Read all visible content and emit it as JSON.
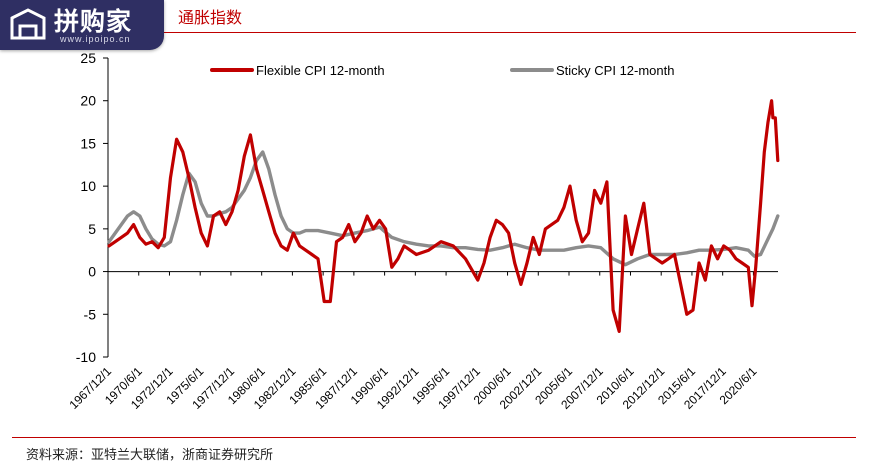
{
  "header": {
    "title": "通胀指数",
    "logo_text": "拼购家",
    "logo_url_text": "www.ipoipo.cn"
  },
  "footer": {
    "source": "资料来源：亚特兰大联储，浙商证券研究所"
  },
  "colors": {
    "flexible": "#c00000",
    "sticky": "#8c8c8c",
    "accent": "#c00000",
    "logo_bg": "#2f2f63"
  },
  "chart_data": {
    "type": "line",
    "title": "",
    "xlabel": "",
    "ylabel": "",
    "ylim": [
      -10,
      25
    ],
    "yticks": [
      "-10",
      "-5",
      "0",
      "5",
      "10",
      "15",
      "20",
      "25"
    ],
    "xlim": [
      "1967/12/1",
      "2022/6/1"
    ],
    "xtick_labels": [
      "1967/12/1",
      "1970/6/1",
      "1972/12/1",
      "1975/6/1",
      "1977/12/1",
      "1980/6/1",
      "1982/12/1",
      "1985/6/1",
      "1987/12/1",
      "1990/6/1",
      "1992/12/1",
      "1995/6/1",
      "1997/12/1",
      "2000/6/1",
      "2002/12/1",
      "2005/6/1",
      "2007/12/1",
      "2010/6/1",
      "2012/12/1",
      "2015/6/1",
      "2017/12/1",
      "2020/6/1"
    ],
    "legend_placement": "top",
    "grid": false,
    "series": [
      {
        "name": "Flexible CPI 12-month",
        "x": [
          1968.0,
          1968.5,
          1969.0,
          1969.5,
          1970.0,
          1970.5,
          1971.0,
          1971.5,
          1972.0,
          1972.5,
          1973.0,
          1973.5,
          1974.0,
          1974.5,
          1975.0,
          1975.5,
          1976.0,
          1976.5,
          1977.0,
          1977.5,
          1978.0,
          1978.5,
          1979.0,
          1979.5,
          1980.0,
          1980.5,
          1981.0,
          1981.5,
          1982.0,
          1982.5,
          1983.0,
          1983.5,
          1984.0,
          1984.5,
          1985.0,
          1985.5,
          1986.0,
          1986.5,
          1987.0,
          1987.5,
          1988.0,
          1988.5,
          1989.0,
          1989.5,
          1990.0,
          1990.5,
          1991.0,
          1991.5,
          1992.0,
          1992.5,
          1993.0,
          1994.0,
          1995.0,
          1996.0,
          1997.0,
          1998.0,
          1998.5,
          1999.0,
          1999.5,
          2000.0,
          2000.5,
          2001.0,
          2001.5,
          2002.0,
          2002.5,
          2003.0,
          2003.5,
          2004.0,
          2004.5,
          2005.0,
          2005.5,
          2006.0,
          2006.5,
          2007.0,
          2007.5,
          2008.0,
          2008.5,
          2009.0,
          2009.5,
          2010.0,
          2010.5,
          2011.0,
          2011.5,
          2012.0,
          2012.5,
          2013.0,
          2013.5,
          2014.0,
          2014.5,
          2015.0,
          2015.5,
          2016.0,
          2016.5,
          2017.0,
          2017.5,
          2018.0,
          2018.5,
          2019.0,
          2019.5,
          2020.0,
          2020.3,
          2020.6,
          2021.0,
          2021.3,
          2021.6,
          2021.9,
          2022.0,
          2022.2,
          2022.4
        ],
        "values": [
          3.0,
          3.5,
          4.0,
          4.5,
          5.5,
          4.0,
          3.2,
          3.5,
          2.8,
          4.0,
          11.0,
          15.5,
          14.0,
          11.0,
          7.5,
          4.5,
          3.0,
          6.5,
          7.0,
          5.5,
          7.0,
          9.5,
          13.5,
          16.0,
          12.0,
          9.5,
          7.0,
          4.5,
          3.0,
          2.5,
          4.5,
          3.0,
          2.5,
          2.0,
          1.5,
          -3.5,
          -3.5,
          3.5,
          4.0,
          5.5,
          3.5,
          4.5,
          6.5,
          5.0,
          6.0,
          5.0,
          0.5,
          1.5,
          3.0,
          2.5,
          2.0,
          2.5,
          3.5,
          3.0,
          1.5,
          -1.0,
          1.0,
          4.0,
          6.0,
          5.5,
          4.5,
          1.0,
          -1.5,
          1.0,
          4.0,
          2.0,
          5.0,
          5.5,
          6.0,
          7.5,
          10.0,
          6.0,
          3.5,
          4.5,
          9.5,
          8.0,
          10.5,
          -4.5,
          -7.0,
          6.5,
          2.0,
          5.0,
          8.0,
          2.0,
          1.5,
          1.0,
          1.5,
          2.0,
          -1.5,
          -5.0,
          -4.5,
          1.0,
          -1.0,
          3.0,
          1.5,
          3.0,
          2.5,
          1.5,
          1.0,
          0.5,
          -4.0,
          0.5,
          8.0,
          14.0,
          17.5,
          20.0,
          18.0,
          18.0,
          13.0
        ]
      },
      {
        "name": "Sticky CPI 12-month",
        "x": [
          1968.0,
          1968.5,
          1969.0,
          1969.5,
          1970.0,
          1970.5,
          1971.0,
          1971.5,
          1972.0,
          1972.5,
          1973.0,
          1973.5,
          1974.0,
          1974.5,
          1975.0,
          1975.5,
          1976.0,
          1976.5,
          1977.0,
          1977.5,
          1978.0,
          1978.5,
          1979.0,
          1979.5,
          1980.0,
          1980.5,
          1981.0,
          1981.5,
          1982.0,
          1982.5,
          1983.0,
          1983.5,
          1984.0,
          1985.0,
          1986.0,
          1987.0,
          1988.0,
          1989.0,
          1990.0,
          1991.0,
          1992.0,
          1993.0,
          1994.0,
          1995.0,
          1996.0,
          1997.0,
          1998.0,
          1999.0,
          2000.0,
          2001.0,
          2002.0,
          2003.0,
          2004.0,
          2005.0,
          2006.0,
          2007.0,
          2008.0,
          2009.0,
          2010.0,
          2011.0,
          2012.0,
          2013.0,
          2014.0,
          2015.0,
          2016.0,
          2017.0,
          2018.0,
          2019.0,
          2020.0,
          2020.5,
          2021.0,
          2021.5,
          2022.0,
          2022.4
        ],
        "values": [
          3.5,
          4.5,
          5.5,
          6.5,
          7.0,
          6.5,
          5.0,
          3.8,
          3.2,
          3.0,
          3.5,
          6.0,
          9.0,
          11.5,
          10.5,
          8.0,
          6.5,
          6.5,
          6.8,
          7.0,
          7.5,
          8.5,
          9.5,
          11.0,
          13.0,
          14.0,
          12.0,
          9.0,
          6.5,
          5.0,
          4.5,
          4.5,
          4.8,
          4.8,
          4.5,
          4.2,
          4.5,
          4.8,
          5.2,
          4.0,
          3.5,
          3.2,
          3.0,
          3.0,
          2.8,
          2.8,
          2.6,
          2.5,
          2.8,
          3.2,
          2.8,
          2.5,
          2.5,
          2.5,
          2.8,
          3.0,
          2.8,
          1.5,
          0.8,
          1.5,
          2.0,
          2.0,
          2.0,
          2.2,
          2.5,
          2.5,
          2.6,
          2.8,
          2.5,
          1.8,
          2.0,
          3.5,
          5.0,
          6.5
        ]
      }
    ]
  }
}
